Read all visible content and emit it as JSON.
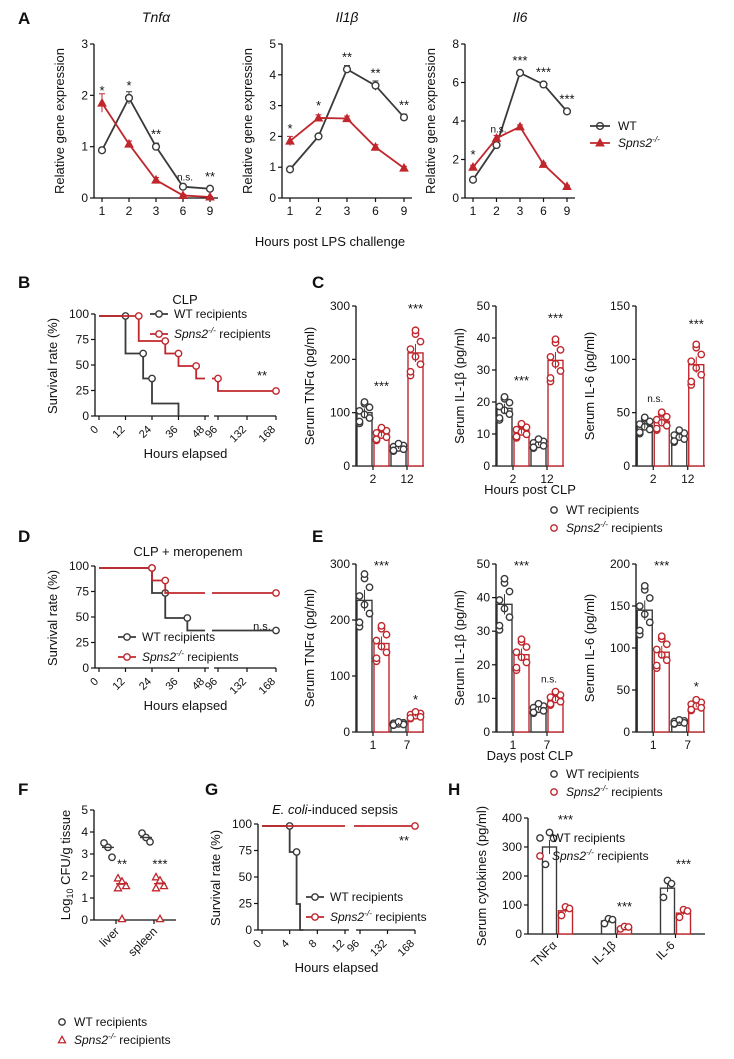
{
  "colors": {
    "wt": "#3a3a3a",
    "ko": "#c0272d",
    "axis": "#111111",
    "bar_wt": "#ffffff",
    "bar_ko": "#ffffff"
  },
  "figure": {
    "panel_labels": [
      "A",
      "B",
      "C",
      "D",
      "E",
      "F",
      "G",
      "H"
    ],
    "legends": {
      "A_wt": "WT",
      "A_ko": "Spns2",
      "B_wt": "WT recipients",
      "B_ko": "Spns2",
      "B_ko_suffix": " recipients",
      "C_wt": "WT recipients",
      "C_ko": "Spns2",
      "C_ko_suffix": " recipients",
      "D_wt": "WT recipients",
      "D_ko": "Spns2",
      "D_ko_suffix": " recipients",
      "E_wt": "WT recipients",
      "E_ko": "Spns2",
      "E_ko_suffix": " recipients",
      "F_wt": "WT recipients",
      "F_ko": "Spns2",
      "F_ko_suffix": " recipients",
      "G_wt": "WT recipients",
      "G_ko": "Spns2",
      "G_ko_suffix": " recipients",
      "H_wt": "WT recipients",
      "H_ko": "Spns2",
      "H_ko_suffix": " recipients",
      "ko_sup": "-/-"
    },
    "shared_xlabels": {
      "A": "Hours post LPS challenge",
      "C": "Hours post CLP",
      "E": "Days post CLP"
    }
  },
  "chart_data": [
    {
      "id": "A1",
      "type": "line",
      "title": "Tnfα",
      "ylabel": "Relative gene expression",
      "categories": [
        "1",
        "2",
        "3",
        "6",
        "9"
      ],
      "ylim": [
        0,
        3
      ],
      "yticks": [
        0,
        1,
        2,
        3
      ],
      "series": [
        {
          "name": "WT",
          "values": [
            0.93,
            1.95,
            1.0,
            0.22,
            0.18
          ],
          "errors": [
            0.05,
            0.12,
            0.07,
            0.05,
            0.03
          ]
        },
        {
          "name": "Spns2-/-",
          "values": [
            1.85,
            1.05,
            0.35,
            0.05,
            0.02
          ],
          "errors": [
            0.18,
            0.06,
            0.05,
            0.02,
            0.01
          ]
        }
      ],
      "annotations": [
        "*",
        "*",
        "**",
        "n.s.",
        "**"
      ]
    },
    {
      "id": "A2",
      "type": "line",
      "title": "Il1β",
      "ylabel": "Relative gene expression",
      "categories": [
        "1",
        "2",
        "3",
        "6",
        "9"
      ],
      "ylim": [
        0,
        5
      ],
      "yticks": [
        0,
        1,
        2,
        3,
        4,
        5
      ],
      "series": [
        {
          "name": "WT",
          "values": [
            0.93,
            2.0,
            4.18,
            3.65,
            2.62
          ],
          "errors": [
            0.05,
            0.08,
            0.12,
            0.15,
            0.1
          ]
        },
        {
          "name": "Spns2-/-",
          "values": [
            1.85,
            2.6,
            2.58,
            1.65,
            0.97
          ],
          "errors": [
            0.15,
            0.1,
            0.08,
            0.08,
            0.06
          ]
        }
      ],
      "annotations": [
        "*",
        "*",
        "**",
        "**",
        "**"
      ]
    },
    {
      "id": "A3",
      "type": "line",
      "title": "Il6",
      "ylabel": "Relative gene expression",
      "categories": [
        "1",
        "2",
        "3",
        "6",
        "9"
      ],
      "ylim": [
        0,
        8
      ],
      "yticks": [
        0,
        2,
        4,
        6,
        8
      ],
      "series": [
        {
          "name": "WT",
          "values": [
            0.95,
            2.75,
            6.5,
            5.9,
            4.5
          ],
          "errors": [
            0.05,
            0.1,
            0.1,
            0.1,
            0.1
          ]
        },
        {
          "name": "Spns2-/-",
          "values": [
            1.6,
            3.1,
            3.7,
            1.75,
            0.6
          ],
          "errors": [
            0.1,
            0.15,
            0.1,
            0.08,
            0.06
          ]
        }
      ],
      "annotations": [
        "*",
        "n.s.",
        "***",
        "***",
        "***"
      ]
    },
    {
      "id": "B",
      "type": "line",
      "title": "CLP",
      "xlabel": "Hours elapsed",
      "ylabel": "Survival rate (%)",
      "xticks": [
        "0",
        "12",
        "24",
        "36",
        "48",
        "96",
        "132",
        "168"
      ],
      "ylim": [
        0,
        100
      ],
      "yticks": [
        0,
        25,
        50,
        75,
        100
      ],
      "series": [
        {
          "name": "WT recipients",
          "steps": [
            [
              0,
              100
            ],
            [
              12,
              100
            ],
            [
              12,
              62.5
            ],
            [
              20,
              62.5
            ],
            [
              20,
              37.5
            ],
            [
              24,
              37.5
            ],
            [
              24,
              12.5
            ],
            [
              36,
              12.5
            ],
            [
              36,
              0
            ]
          ]
        },
        {
          "name": "Spns2-/- recipients",
          "steps": [
            [
              0,
              100
            ],
            [
              18,
              100
            ],
            [
              18,
              75
            ],
            [
              30,
              75
            ],
            [
              30,
              62.5
            ],
            [
              36,
              62.5
            ],
            [
              36,
              50
            ],
            [
              44,
              50
            ],
            [
              44,
              37.5
            ],
            [
              48,
              37.5
            ],
            [
              96,
              37.5
            ],
            [
              96,
              25
            ],
            [
              168,
              25
            ]
          ]
        }
      ],
      "annotations": [
        "**"
      ]
    },
    {
      "id": "C1",
      "type": "bar",
      "ylabel": "Serum TNFα (pg/ml)",
      "categories": [
        "2",
        "12"
      ],
      "ylim": [
        0,
        300
      ],
      "yticks": [
        0,
        100,
        200,
        300
      ],
      "series": [
        {
          "name": "WT recipients",
          "values": [
            100,
            35
          ]
        },
        {
          "name": "Spns2-/- recipients",
          "values": [
            60,
            212
          ]
        }
      ],
      "annotations": [
        "***",
        "***"
      ]
    },
    {
      "id": "C2",
      "type": "bar",
      "ylabel": "Serum IL-1β (pg/ml)",
      "categories": [
        "2",
        "12"
      ],
      "ylim": [
        0,
        50
      ],
      "yticks": [
        0,
        10,
        20,
        30,
        40,
        50
      ],
      "series": [
        {
          "name": "WT recipients",
          "values": [
            18,
            7
          ]
        },
        {
          "name": "Spns2-/- recipients",
          "values": [
            11,
            33
          ]
        }
      ],
      "annotations": [
        "***",
        "***"
      ]
    },
    {
      "id": "C3",
      "type": "bar",
      "ylabel": "Serum IL-6 (pg/ml)",
      "categories": [
        "2",
        "12"
      ],
      "ylim": [
        0,
        150
      ],
      "yticks": [
        0,
        50,
        100,
        150
      ],
      "series": [
        {
          "name": "WT recipients",
          "values": [
            38,
            28
          ]
        },
        {
          "name": "Spns2-/- recipients",
          "values": [
            42,
            95
          ]
        }
      ],
      "annotations": [
        "n.s.",
        "***"
      ]
    },
    {
      "id": "D",
      "type": "line",
      "title": "CLP + meropenem",
      "xlabel": "Hours elapsed",
      "ylabel": "Survival rate (%)",
      "xticks": [
        "0",
        "12",
        "24",
        "36",
        "48",
        "96",
        "132",
        "168"
      ],
      "ylim": [
        0,
        100
      ],
      "yticks": [
        0,
        25,
        50,
        75,
        100
      ],
      "series": [
        {
          "name": "WT recipients",
          "steps": [
            [
              0,
              100
            ],
            [
              24,
              100
            ],
            [
              24,
              75
            ],
            [
              30,
              75
            ],
            [
              30,
              50
            ],
            [
              40,
              50
            ],
            [
              40,
              37.5
            ],
            [
              48,
              37.5
            ],
            [
              96,
              37.5
            ],
            [
              168,
              37.5
            ]
          ]
        },
        {
          "name": "Spns2-/- recipients",
          "steps": [
            [
              0,
              100
            ],
            [
              24,
              100
            ],
            [
              24,
              87.5
            ],
            [
              30,
              87.5
            ],
            [
              30,
              75
            ],
            [
              48,
              75
            ],
            [
              96,
              75
            ],
            [
              168,
              75
            ]
          ]
        }
      ],
      "annotations": [
        "n.s."
      ]
    },
    {
      "id": "E1",
      "type": "bar",
      "ylabel": "Serum TNFα (pg/ml)",
      "categories": [
        "1",
        "7"
      ],
      "ylim": [
        0,
        300
      ],
      "yticks": [
        0,
        100,
        200,
        300
      ],
      "series": [
        {
          "name": "WT recipients",
          "values": [
            235,
            15
          ]
        },
        {
          "name": "Spns2-/- recipients",
          "values": [
            158,
            30
          ]
        }
      ],
      "annotations": [
        "***",
        "*"
      ]
    },
    {
      "id": "E2",
      "type": "bar",
      "ylabel": "Serum IL-1β (pg/ml)",
      "categories": [
        "1",
        "7"
      ],
      "ylim": [
        0,
        50
      ],
      "yticks": [
        0,
        10,
        20,
        30,
        40,
        50
      ],
      "series": [
        {
          "name": "WT recipients",
          "values": [
            38,
            7
          ]
        },
        {
          "name": "Spns2-/- recipients",
          "values": [
            23,
            10
          ]
        }
      ],
      "annotations": [
        "***",
        "n.s."
      ]
    },
    {
      "id": "E3",
      "type": "bar",
      "ylabel": "Serum IL-6 (pg/ml)",
      "categories": [
        "1",
        "7"
      ],
      "ylim": [
        0,
        200
      ],
      "yticks": [
        0,
        50,
        100,
        150,
        200
      ],
      "series": [
        {
          "name": "WT recipients",
          "values": [
            145,
            12
          ]
        },
        {
          "name": "Spns2-/- recipients",
          "values": [
            95,
            32
          ]
        }
      ],
      "annotations": [
        "***",
        "*"
      ]
    },
    {
      "id": "F",
      "type": "scatter",
      "ylabel": "Log10 CFU/g tissue",
      "categories": [
        "liver",
        "spleen"
      ],
      "ylim": [
        0,
        5
      ],
      "yticks": [
        0,
        1,
        2,
        3,
        4,
        5
      ],
      "series": [
        {
          "name": "WT recipients",
          "means": [
            3.3,
            3.75
          ],
          "points": [
            [
              3.5,
              3.3,
              2.85
            ],
            [
              3.95,
              3.75,
              3.55
            ]
          ]
        },
        {
          "name": "Spns2-/- recipients",
          "means": [
            1.65,
            1.65
          ],
          "points": [
            [
              1.9,
              1.75,
              1.55,
              1.45,
              0.05
            ],
            [
              1.95,
              1.8,
              1.55,
              1.45,
              0.05
            ]
          ]
        }
      ],
      "annotations": [
        "**",
        "***"
      ]
    },
    {
      "id": "G",
      "type": "line",
      "title": "E. coli-induced sepsis",
      "xlabel": "Hours elapsed",
      "ylabel": "Survival rate (%)",
      "xticks": [
        "0",
        "4",
        "8",
        "12",
        "96",
        "132",
        "168"
      ],
      "ylim": [
        0,
        100
      ],
      "yticks": [
        0,
        25,
        50,
        75,
        100
      ],
      "series": [
        {
          "name": "WT recipients",
          "steps": [
            [
              0,
              100
            ],
            [
              4,
              100
            ],
            [
              4,
              75
            ],
            [
              5,
              75
            ],
            [
              5,
              25
            ],
            [
              5.5,
              25
            ],
            [
              5.5,
              0
            ],
            [
              6,
              0
            ]
          ]
        },
        {
          "name": "Spns2-/- recipients",
          "steps": [
            [
              0,
              100
            ],
            [
              12,
              100
            ],
            [
              96,
              100
            ],
            [
              168,
              100
            ]
          ]
        }
      ],
      "annotations": [
        "**"
      ]
    },
    {
      "id": "H",
      "type": "bar",
      "ylabel": "Serum cytokines (pg/ml)",
      "categories": [
        "TNFα",
        "IL-1β",
        "IL-6"
      ],
      "ylim": [
        0,
        400
      ],
      "yticks": [
        0,
        100,
        200,
        300,
        400
      ],
      "series": [
        {
          "name": "WT recipients",
          "values": [
            300,
            45,
            158
          ]
        },
        {
          "name": "Spns2-/- recipients",
          "values": [
            80,
            22,
            72
          ]
        }
      ],
      "annotations": [
        "***",
        "***",
        "***"
      ]
    }
  ]
}
